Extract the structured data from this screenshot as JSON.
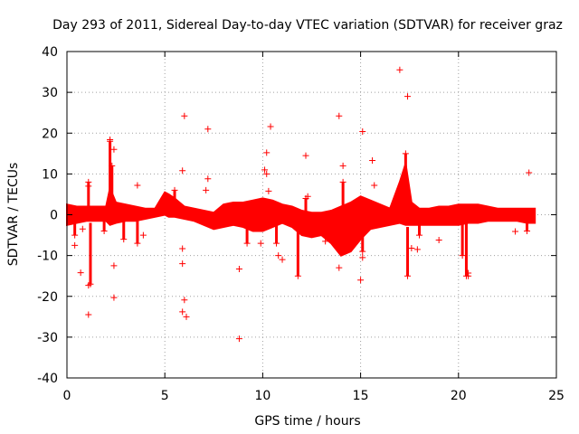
{
  "chart_data": {
    "type": "scatter",
    "title": "Day 293 of 2011, Sidereal Day-to-day VTEC variation (SDTVAR) for receiver graz",
    "xlabel": "GPS time / hours",
    "ylabel": "SDTVAR / TECUs",
    "xlim": [
      0,
      25
    ],
    "ylim": [
      -40,
      40
    ],
    "xticks": [
      0,
      5,
      10,
      15,
      20,
      25
    ],
    "yticks": [
      -40,
      -30,
      -20,
      -10,
      0,
      10,
      20,
      30,
      40
    ],
    "grid": true,
    "marker": "plus",
    "color": "#ff0000",
    "series": [
      {
        "name": "SDTVAR",
        "band": {
          "description": "dense scatter band, lower and upper envelope (TECU) vs hours",
          "x": [
            0.0,
            0.5,
            1.0,
            1.5,
            2.0,
            2.2,
            2.5,
            3.0,
            3.5,
            4.0,
            4.5,
            5.0,
            5.2,
            5.5,
            6.0,
            6.5,
            7.0,
            7.5,
            8.0,
            8.5,
            9.0,
            9.5,
            10.0,
            10.5,
            11.0,
            11.5,
            12.0,
            12.5,
            13.0,
            13.5,
            14.0,
            14.5,
            15.0,
            15.5,
            16.0,
            16.5,
            17.0,
            17.3,
            17.6,
            18.0,
            18.5,
            19.0,
            19.5,
            20.0,
            20.5,
            21.0,
            21.5,
            22.0,
            22.5,
            23.0,
            23.5,
            23.9
          ],
          "lower": [
            -2.5,
            -2.0,
            -1.5,
            -1.5,
            -1.5,
            -2.5,
            -2.0,
            -1.5,
            -1.5,
            -1.0,
            -0.5,
            0.0,
            -0.5,
            -0.5,
            -1.0,
            -1.5,
            -2.5,
            -3.5,
            -3.0,
            -2.5,
            -3.0,
            -4.0,
            -4.0,
            -3.0,
            -2.0,
            -3.0,
            -5.0,
            -5.5,
            -5.0,
            -7.0,
            -10.0,
            -9.0,
            -6.0,
            -3.5,
            -3.0,
            -2.5,
            -2.0,
            -2.5,
            -2.5,
            -2.5,
            -2.5,
            -2.5,
            -2.5,
            -2.5,
            -2.0,
            -2.0,
            -1.5,
            -1.5,
            -1.5,
            -1.5,
            -2.0,
            -2.0
          ],
          "upper": [
            2.5,
            2.0,
            2.0,
            2.0,
            2.0,
            6.5,
            3.0,
            2.5,
            2.0,
            1.5,
            1.5,
            5.5,
            5.0,
            4.0,
            2.0,
            1.5,
            1.0,
            0.5,
            2.5,
            3.0,
            3.0,
            3.5,
            4.0,
            3.5,
            2.5,
            2.0,
            1.0,
            0.5,
            0.5,
            1.0,
            2.0,
            3.0,
            4.5,
            3.5,
            2.5,
            1.5,
            8.0,
            12.5,
            3.0,
            1.5,
            1.5,
            2.0,
            2.0,
            2.5,
            2.5,
            2.5,
            2.0,
            1.5,
            1.5,
            1.5,
            1.5,
            1.5
          ]
        },
        "spikes": [
          {
            "x": 2.2,
            "y_from": 2,
            "y_to": 18
          },
          {
            "x": 2.3,
            "y_from": 0,
            "y_to": 12
          },
          {
            "x": 1.2,
            "y_from": -2,
            "y_to": -17
          },
          {
            "x": 1.1,
            "y_from": 2,
            "y_to": 8
          },
          {
            "x": 12.2,
            "y_from": 0,
            "y_to": 4
          },
          {
            "x": 11.8,
            "y_from": -3,
            "y_to": -15
          },
          {
            "x": 5.5,
            "y_from": 0,
            "y_to": 6
          },
          {
            "x": 17.3,
            "y_from": 0,
            "y_to": 15
          },
          {
            "x": 17.4,
            "y_from": -3,
            "y_to": -15
          },
          {
            "x": 14.1,
            "y_from": 0,
            "y_to": 8
          },
          {
            "x": 15.1,
            "y_from": -3,
            "y_to": -9
          },
          {
            "x": 20.2,
            "y_from": -2,
            "y_to": -10
          },
          {
            "x": 20.4,
            "y_from": -2,
            "y_to": -15
          },
          {
            "x": 23.5,
            "y_from": 0,
            "y_to": -4
          },
          {
            "x": 3.6,
            "y_from": -1,
            "y_to": -7
          },
          {
            "x": 2.9,
            "y_from": -1,
            "y_to": -6
          },
          {
            "x": 0.4,
            "y_from": 0,
            "y_to": -5
          },
          {
            "x": 1.9,
            "y_from": -1,
            "y_to": -4
          },
          {
            "x": 18.0,
            "y_from": -1,
            "y_to": -5
          },
          {
            "x": 10.7,
            "y_from": -1,
            "y_to": -7
          },
          {
            "x": 9.2,
            "y_from": -1,
            "y_to": -7
          }
        ],
        "outliers": [
          [
            17.0,
            35.5
          ],
          [
            17.4,
            29.0
          ],
          [
            6.0,
            24.2
          ],
          [
            13.9,
            24.2
          ],
          [
            10.4,
            21.6
          ],
          [
            7.2,
            21.0
          ],
          [
            15.1,
            20.4
          ],
          [
            2.2,
            18.4
          ],
          [
            2.4,
            16.0
          ],
          [
            10.2,
            15.2
          ],
          [
            12.2,
            14.5
          ],
          [
            15.6,
            13.3
          ],
          [
            14.1,
            12.0
          ],
          [
            10.1,
            11.0
          ],
          [
            5.9,
            10.8
          ],
          [
            23.6,
            10.3
          ],
          [
            10.2,
            10.0
          ],
          [
            7.2,
            8.8
          ],
          [
            3.6,
            7.2
          ],
          [
            15.7,
            7.2
          ],
          [
            1.1,
            7.0
          ],
          [
            7.1,
            6.0
          ],
          [
            10.3,
            5.8
          ],
          [
            12.3,
            4.5
          ],
          [
            0.8,
            -3.5
          ],
          [
            0.4,
            -7.5
          ],
          [
            17.9,
            -8.5
          ],
          [
            17.6,
            -8.2
          ],
          [
            5.9,
            -8.3
          ],
          [
            10.8,
            -10.0
          ],
          [
            15.1,
            -10.5
          ],
          [
            0.7,
            -14.2
          ],
          [
            1.1,
            -17.3
          ],
          [
            2.4,
            -12.5
          ],
          [
            5.9,
            -12.0
          ],
          [
            15.0,
            -16.0
          ],
          [
            8.8,
            -13.3
          ],
          [
            13.9,
            -13.0
          ],
          [
            2.4,
            -20.3
          ],
          [
            6.0,
            -20.9
          ],
          [
            5.9,
            -23.8
          ],
          [
            6.1,
            -25.0
          ],
          [
            1.1,
            -24.5
          ],
          [
            8.8,
            -30.4
          ],
          [
            11.0,
            -11.0
          ],
          [
            20.5,
            -14.3
          ],
          [
            20.5,
            -15.0
          ],
          [
            19.0,
            -6.2
          ],
          [
            22.9,
            -4.1
          ],
          [
            9.9,
            -7.0
          ],
          [
            3.9,
            -5.0
          ],
          [
            13.2,
            -6.5
          ]
        ]
      }
    ]
  }
}
